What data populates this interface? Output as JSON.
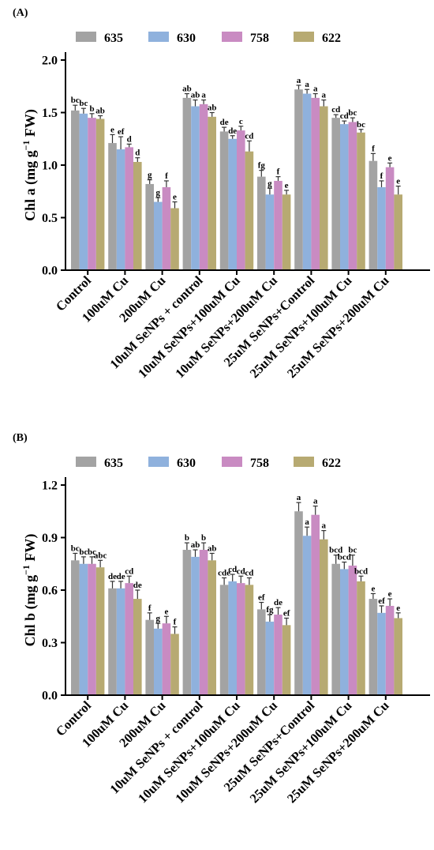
{
  "colors": {
    "series": [
      "#a3a3a3",
      "#8fb1dd",
      "#c98bc2",
      "#b7aa72"
    ],
    "error": "#333333",
    "axis": "#000000"
  },
  "chart_data": [
    {
      "type": "bar",
      "panel_label": "(A)",
      "ylabel_main": "Chl a (mg g",
      "ylabel_sup": "−1",
      "ylabel_tail": " FW)",
      "ylim": [
        0,
        2.0
      ],
      "yticks": [
        "0.0",
        "0.5",
        "1.0",
        "1.5",
        "2.0"
      ],
      "ytick_values": [
        0,
        0.5,
        1.0,
        1.5,
        2.0
      ],
      "legend_position": "top",
      "categories": [
        "Control",
        "100uM Cu",
        "200uM Cu",
        "10uM SeNPs + control",
        "10uM SeNPs+100uM Cu",
        "10uM SeNPs+200uM Cu",
        "25uM SeNPs+Control",
        "25uM SeNPs+100uM Cu",
        "25uM SeNPs+200uM Cu"
      ],
      "series": [
        {
          "name": "635",
          "values": [
            1.52,
            1.21,
            0.82,
            1.64,
            1.32,
            0.89,
            1.72,
            1.45,
            1.04
          ],
          "errors": [
            0.05,
            0.08,
            0.04,
            0.04,
            0.04,
            0.06,
            0.04,
            0.03,
            0.07
          ],
          "labels": [
            "bc",
            "e",
            "g",
            "ab",
            "de",
            "fg",
            "a",
            "cd",
            "f"
          ]
        },
        {
          "name": "630",
          "values": [
            1.49,
            1.15,
            0.65,
            1.56,
            1.25,
            0.72,
            1.68,
            1.39,
            0.79
          ],
          "errors": [
            0.05,
            0.12,
            0.04,
            0.06,
            0.03,
            0.06,
            0.04,
            0.03,
            0.06
          ],
          "labels": [
            "bc",
            "ef",
            "g",
            "ab",
            "de",
            "g",
            "a",
            "cd",
            "f"
          ]
        },
        {
          "name": "758",
          "values": [
            1.45,
            1.17,
            0.79,
            1.58,
            1.33,
            0.85,
            1.64,
            1.41,
            0.98
          ],
          "errors": [
            0.04,
            0.03,
            0.06,
            0.04,
            0.04,
            0.04,
            0.04,
            0.04,
            0.04
          ],
          "labels": [
            "b",
            "d",
            "f",
            "a",
            "c",
            "f",
            "a",
            "bc",
            "e"
          ]
        },
        {
          "name": "622",
          "values": [
            1.44,
            1.03,
            0.59,
            1.46,
            1.13,
            0.72,
            1.56,
            1.31,
            0.72
          ],
          "errors": [
            0.03,
            0.04,
            0.06,
            0.04,
            0.1,
            0.04,
            0.06,
            0.03,
            0.08
          ],
          "labels": [
            "ab",
            "d",
            "e",
            "ab",
            "cd",
            "e",
            "a",
            "bc",
            "e"
          ]
        }
      ]
    },
    {
      "type": "bar",
      "panel_label": "(B)",
      "ylabel_main": "Chl b (mg g",
      "ylabel_sup": "−1",
      "ylabel_tail": " FW)",
      "ylim": [
        0,
        1.2
      ],
      "yticks": [
        "0.0",
        "0.3",
        "0.6",
        "0.9",
        "1.2"
      ],
      "ytick_values": [
        0,
        0.3,
        0.6,
        0.9,
        1.2
      ],
      "legend_position": "top",
      "categories": [
        "Control",
        "100uM Cu",
        "200uM Cu",
        "10uM SeNPs + control",
        "10uM SeNPs+100uM Cu",
        "10uM SeNPs+200uM Cu",
        "25uM SeNPs+Control",
        "25uM SeNPs+100uM Cu",
        "25uM SeNPs+200uM Cu"
      ],
      "series": [
        {
          "name": "635",
          "values": [
            0.77,
            0.61,
            0.43,
            0.83,
            0.63,
            0.49,
            1.05,
            0.75,
            0.55
          ],
          "errors": [
            0.04,
            0.04,
            0.04,
            0.04,
            0.04,
            0.04,
            0.05,
            0.05,
            0.03
          ],
          "labels": [
            "bc",
            "de",
            "f",
            "b",
            "cde",
            "ef",
            "a",
            "bcd",
            "e"
          ]
        },
        {
          "name": "630",
          "values": [
            0.75,
            0.61,
            0.38,
            0.79,
            0.65,
            0.42,
            0.91,
            0.72,
            0.47
          ],
          "errors": [
            0.04,
            0.04,
            0.03,
            0.04,
            0.04,
            0.04,
            0.05,
            0.04,
            0.04
          ],
          "labels": [
            "bc",
            "de",
            "g",
            "ab",
            "cd",
            "fg",
            "a",
            "bcd",
            "ef"
          ]
        },
        {
          "name": "758",
          "values": [
            0.75,
            0.64,
            0.41,
            0.83,
            0.64,
            0.46,
            1.03,
            0.74,
            0.51
          ],
          "errors": [
            0.04,
            0.04,
            0.04,
            0.04,
            0.04,
            0.04,
            0.05,
            0.06,
            0.04
          ],
          "labels": [
            "bc",
            "cd",
            "e",
            "b",
            "cd",
            "de",
            "a",
            "bc",
            "e"
          ]
        },
        {
          "name": "622",
          "values": [
            0.73,
            0.55,
            0.35,
            0.77,
            0.63,
            0.4,
            0.89,
            0.65,
            0.44
          ],
          "errors": [
            0.04,
            0.05,
            0.04,
            0.04,
            0.04,
            0.04,
            0.05,
            0.03,
            0.03
          ],
          "labels": [
            "abc",
            "de",
            "f",
            "ab",
            "cd",
            "ef",
            "a",
            "bcd",
            "e"
          ]
        }
      ]
    }
  ]
}
